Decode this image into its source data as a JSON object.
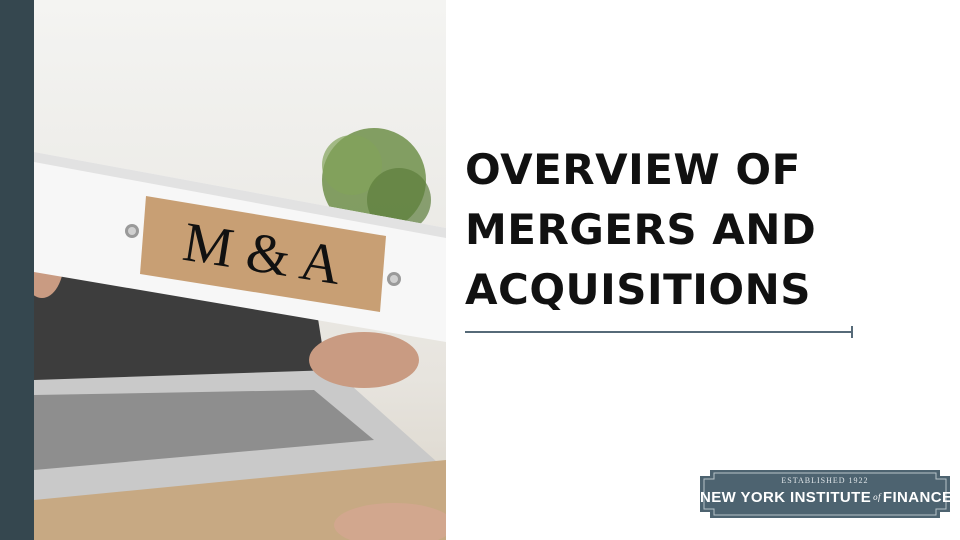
{
  "slide": {
    "title_lines": [
      "OVERVIEW OF",
      "MERGERS AND",
      "ACQUISITIONS"
    ]
  },
  "photo": {
    "label_text": "M & A",
    "description_icon": "binder-photo"
  },
  "logo": {
    "established": "ESTABLISHED 1922",
    "name_before": "NEW YORK INSTITUTE",
    "name_of": "of",
    "name_after": "FINANCE"
  },
  "colors": {
    "side_bar": "#35474f",
    "title_text": "#111111",
    "rule": "#566a78",
    "logo_bg": "#4d6370"
  }
}
